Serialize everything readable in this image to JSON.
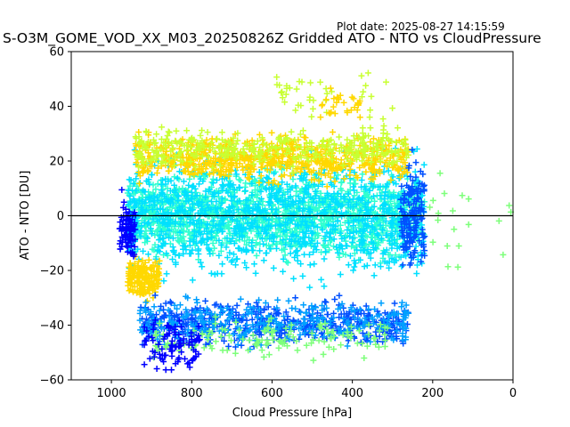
{
  "plot_date": "Plot date: 2025-08-27 14:15:59",
  "chart_data": {
    "type": "scatter",
    "title": "S-O3M_GOME_VOD_XX_M03_20250826Z Gridded ATO - NTO vs CloudPressure",
    "xlabel": "Cloud Pressure [hPa]",
    "ylabel": "ATO - NTO [DU]",
    "xlim": [
      1100,
      0
    ],
    "ylim": [
      -60,
      60
    ],
    "x_ticks": [
      1000,
      800,
      600,
      400,
      200,
      0
    ],
    "y_ticks": [
      -60,
      -40,
      -20,
      0,
      20,
      40,
      60
    ],
    "x_tick_labels": [
      "1000",
      "800",
      "600",
      "400",
      "200",
      "0"
    ],
    "y_tick_labels": [
      "−60",
      "−40",
      "−20",
      "0",
      "20",
      "40",
      "60"
    ],
    "reference_line_y": 0,
    "marker": "plus",
    "grid": false,
    "colors": [
      "#0000ff",
      "#0050ff",
      "#00a0ff",
      "#00e0ff",
      "#30ffd0",
      "#7dff7a",
      "#c8ff32",
      "#ffd800",
      "#ffb000"
    ],
    "clouds": [
      {
        "x_range": [
          960,
          220
        ],
        "y_range": [
          -20,
          20
        ],
        "color_index": 4,
        "count": 1400
      },
      {
        "x_range": [
          960,
          220
        ],
        "y_range": [
          -30,
          30
        ],
        "color_index": 3,
        "count": 1100
      },
      {
        "x_range": [
          940,
          260
        ],
        "y_range": [
          10,
          32
        ],
        "color_index": 7,
        "count": 700
      },
      {
        "x_range": [
          940,
          260
        ],
        "y_range": [
          15,
          34
        ],
        "color_index": 6,
        "count": 350
      },
      {
        "x_range": [
          960,
          880
        ],
        "y_range": [
          -33,
          -12
        ],
        "color_index": 7,
        "count": 180
      },
      {
        "x_range": [
          980,
          940
        ],
        "y_range": [
          -20,
          10
        ],
        "color_index": 0,
        "count": 90
      },
      {
        "x_range": [
          280,
          220
        ],
        "y_range": [
          -25,
          25
        ],
        "color_index": 1,
        "count": 160
      },
      {
        "x_range": [
          930,
          260
        ],
        "y_range": [
          -50,
          -28
        ],
        "color_index": 1,
        "count": 500
      },
      {
        "x_range": [
          930,
          260
        ],
        "y_range": [
          -50,
          -28
        ],
        "color_index": 2,
        "count": 300
      },
      {
        "x_range": [
          900,
          300
        ],
        "y_range": [
          -55,
          -35
        ],
        "color_index": 5,
        "count": 140
      },
      {
        "x_range": [
          920,
          780
        ],
        "y_range": [
          -60,
          -35
        ],
        "color_index": 0,
        "count": 90
      },
      {
        "x_range": [
          600,
          300
        ],
        "y_range": [
          30,
          58
        ],
        "color_index": 6,
        "count": 40
      },
      {
        "x_range": [
          480,
          380
        ],
        "y_range": [
          30,
          50
        ],
        "color_index": 7,
        "count": 30
      },
      {
        "x_range": [
          220,
          0
        ],
        "y_range": [
          -40,
          35
        ],
        "color_index": 5,
        "count": 20
      }
    ]
  }
}
